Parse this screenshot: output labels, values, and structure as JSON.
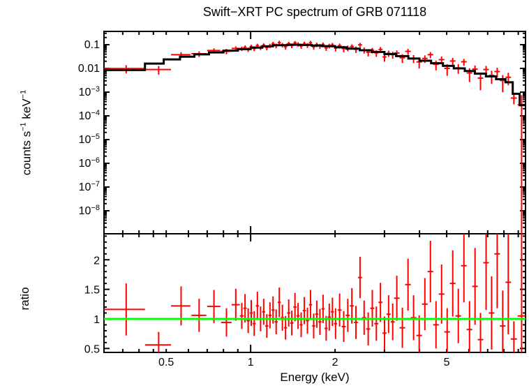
{
  "title": "Swift−XRT PC spectrum of GRB 071118",
  "labels": {
    "x": "Energy (keV)",
    "y_top": {
      "p1": "counts s",
      "s1": "−1",
      "p2": " keV",
      "s2": "−1"
    },
    "y_bottom": "ratio"
  },
  "colors": {
    "data": "#ff0000",
    "model": "#000000",
    "reference": "#00ff00",
    "axis": "#000000",
    "background": "#ffffff"
  },
  "chart_data": {
    "type": "scatter",
    "subtype": "two-panel X-ray spectrum: data with errors + stepped model (top), data/model ratio (bottom)",
    "title": "Swift−XRT PC spectrum of GRB 071118",
    "x_axis": {
      "label": "Energy (keV)",
      "scale": "log",
      "range": [
        0.3,
        9.55
      ],
      "labeled_ticks": [
        {
          "t": "0.5",
          "v": 0.5
        },
        {
          "t": "1",
          "v": 1,
          "decade": true
        },
        {
          "t": "2",
          "v": 2
        },
        {
          "t": "5",
          "v": 5
        }
      ],
      "minor_ticks": [
        0.35,
        0.4,
        0.45,
        0.6,
        0.7,
        0.8,
        0.9,
        3,
        4,
        6,
        7,
        8,
        9
      ]
    },
    "top_panel": {
      "ylabel": "counts s−1 keV−1",
      "scale": "log",
      "range": [
        1.07e-09,
        0.362
      ],
      "ticks": [
        {
          "t": "0.1",
          "v": 0.1
        },
        {
          "t": "0.01",
          "v": 0.01
        },
        {
          "b": "10",
          "e": "−3",
          "v": 0.001
        },
        {
          "b": "10",
          "e": "−4",
          "v": 0.0001
        },
        {
          "b": "10",
          "e": "−5",
          "v": 1e-05
        },
        {
          "b": "10",
          "e": "−6",
          "v": 1e-06
        },
        {
          "b": "10",
          "e": "−7",
          "v": 1e-07
        },
        {
          "b": "10",
          "e": "−8",
          "v": 1e-08
        }
      ],
      "model_steps": {
        "edges": [
          0.3,
          0.42,
          0.49,
          0.56,
          0.63,
          0.71,
          0.8,
          0.9,
          1.0,
          1.1,
          1.2,
          1.35,
          1.5,
          1.65,
          1.8,
          2.0,
          2.2,
          2.45,
          2.7,
          3.0,
          3.3,
          3.65,
          4.0,
          4.4,
          4.85,
          5.3,
          5.8,
          6.3,
          6.9,
          7.5,
          8.1,
          8.6,
          9.1,
          9.55
        ],
        "values": [
          0.0085,
          0.016,
          0.024,
          0.031,
          0.039,
          0.047,
          0.056,
          0.065,
          0.075,
          0.085,
          0.095,
          0.099,
          0.097,
          0.092,
          0.087,
          0.078,
          0.068,
          0.058,
          0.049,
          0.04,
          0.033,
          0.026,
          0.021,
          0.0165,
          0.0128,
          0.01,
          0.0078,
          0.006,
          0.0046,
          0.0035,
          0.0026,
          0.00085,
          0.00028
        ]
      }
    },
    "ratio_panel": {
      "ylabel": "ratio",
      "scale": "linear",
      "range": [
        0.433,
        2.44
      ],
      "labeled_ticks": [
        {
          "t": "0.5",
          "v": 0.5
        },
        {
          "t": "1",
          "v": 1
        },
        {
          "t": "1.5",
          "v": 1.5
        },
        {
          "t": "2",
          "v": 2
        }
      ],
      "minor_step": 0.1,
      "reference_line": 1
    },
    "points_format": [
      "energy_keV",
      "half_width_keV",
      "ratio",
      "ratio_error"
    ],
    "points_note": "top-panel counts value = model(energy) × ratio; counts error = model(energy) × ratio_error",
    "points": [
      [
        0.36,
        0.06,
        1.16,
        0.44
      ],
      [
        0.47,
        0.05,
        0.56,
        0.22
      ],
      [
        0.565,
        0.045,
        1.22,
        0.33
      ],
      [
        0.655,
        0.04,
        1.06,
        0.28
      ],
      [
        0.74,
        0.04,
        1.21,
        0.28
      ],
      [
        0.82,
        0.035,
        0.94,
        0.24
      ],
      [
        0.885,
        0.03,
        1.24,
        0.27
      ],
      [
        0.93,
        0.015,
        1.05,
        0.22
      ],
      [
        0.955,
        0.013,
        1.18,
        0.24
      ],
      [
        0.98,
        0.013,
        0.97,
        0.21
      ],
      [
        1.005,
        0.013,
        1.1,
        0.22
      ],
      [
        1.03,
        0.013,
        0.92,
        0.21
      ],
      [
        1.057,
        0.014,
        1.22,
        0.24
      ],
      [
        1.085,
        0.014,
        1.0,
        0.21
      ],
      [
        1.113,
        0.014,
        1.12,
        0.22
      ],
      [
        1.142,
        0.015,
        0.88,
        0.2
      ],
      [
        1.172,
        0.015,
        1.06,
        0.22
      ],
      [
        1.202,
        0.015,
        1.15,
        0.23
      ],
      [
        1.233,
        0.016,
        0.95,
        0.21
      ],
      [
        1.265,
        0.016,
        1.28,
        0.25
      ],
      [
        1.298,
        0.017,
        1.02,
        0.22
      ],
      [
        1.332,
        0.017,
        0.85,
        0.2
      ],
      [
        1.367,
        0.018,
        1.1,
        0.23
      ],
      [
        1.402,
        0.018,
        0.93,
        0.21
      ],
      [
        1.439,
        0.019,
        1.2,
        0.24
      ],
      [
        1.476,
        0.019,
        1.05,
        0.22
      ],
      [
        1.514,
        0.019,
        0.9,
        0.21
      ],
      [
        1.554,
        0.02,
        1.14,
        0.23
      ],
      [
        1.594,
        0.02,
        0.97,
        0.22
      ],
      [
        1.635,
        0.021,
        1.24,
        0.25
      ],
      [
        1.678,
        0.022,
        0.88,
        0.21
      ],
      [
        1.721,
        0.022,
        1.08,
        0.23
      ],
      [
        1.766,
        0.023,
        0.95,
        0.22
      ],
      [
        1.812,
        0.023,
        1.17,
        0.24
      ],
      [
        1.859,
        0.024,
        0.84,
        0.21
      ],
      [
        1.907,
        0.024,
        1.03,
        0.23
      ],
      [
        1.957,
        0.025,
        1.12,
        0.24
      ],
      [
        2.008,
        0.026,
        0.92,
        0.26
      ],
      [
        2.076,
        0.034,
        1.15,
        0.28
      ],
      [
        2.147,
        0.035,
        0.87,
        0.26
      ],
      [
        2.22,
        0.037,
        1.06,
        0.28
      ],
      [
        2.296,
        0.038,
        1.22,
        0.3
      ],
      [
        2.374,
        0.039,
        0.94,
        0.28
      ],
      [
        2.455,
        0.041,
        1.7,
        0.35
      ],
      [
        2.539,
        0.042,
        1.02,
        0.29
      ],
      [
        2.625,
        0.044,
        0.83,
        0.28
      ],
      [
        2.715,
        0.045,
        1.18,
        0.31
      ],
      [
        2.807,
        0.047,
        0.92,
        0.29
      ],
      [
        2.903,
        0.048,
        1.28,
        0.33
      ],
      [
        3.002,
        0.05,
        0.76,
        0.28
      ],
      [
        3.104,
        0.052,
        1.08,
        0.32
      ],
      [
        3.21,
        0.053,
        0.95,
        0.31
      ],
      [
        3.32,
        0.075,
        1.35,
        0.38
      ],
      [
        3.475,
        0.08,
        0.85,
        0.34
      ],
      [
        3.64,
        0.084,
        1.58,
        0.44
      ],
      [
        3.81,
        0.088,
        1.02,
        0.38
      ],
      [
        3.99,
        0.092,
        0.72,
        0.34
      ],
      [
        4.18,
        0.097,
        1.25,
        0.44
      ],
      [
        4.375,
        0.101,
        1.8,
        0.52
      ],
      [
        4.58,
        0.106,
        0.9,
        0.4
      ],
      [
        4.795,
        0.111,
        1.42,
        0.5
      ],
      [
        5.02,
        0.116,
        0.78,
        0.4
      ],
      [
        5.255,
        0.121,
        1.6,
        0.56
      ],
      [
        5.5,
        0.127,
        1.05,
        0.46
      ],
      [
        5.76,
        0.133,
        1.9,
        0.62
      ],
      [
        6.03,
        0.138,
        0.82,
        0.48
      ],
      [
        6.31,
        0.145,
        1.55,
        0.65
      ],
      [
        6.6,
        0.151,
        0.65,
        0.45
      ],
      [
        6.91,
        0.158,
        1.95,
        0.8
      ],
      [
        7.23,
        0.165,
        1.1,
        0.62
      ],
      [
        7.57,
        0.173,
        2.1,
        0.92
      ],
      [
        7.92,
        0.181,
        0.88,
        0.6
      ],
      [
        8.29,
        0.189,
        1.62,
        0.88
      ],
      [
        8.68,
        0.22,
        0.66,
        0.3
      ],
      [
        9.25,
        0.3,
        1.05,
        1.6
      ]
    ]
  }
}
